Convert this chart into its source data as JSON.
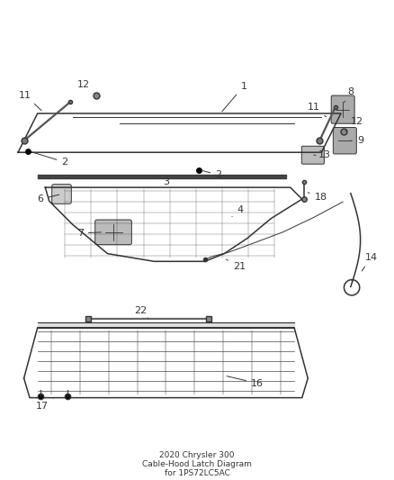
{
  "title": "2020 Chrysler 300\nCable-Hood Latch Diagram\nfor 1PS72LC5AC",
  "background_color": "#ffffff",
  "line_color": "#333333",
  "label_color": "#333333",
  "label_fontsize": 8,
  "figsize": [
    4.38,
    5.33
  ],
  "dpi": 100
}
